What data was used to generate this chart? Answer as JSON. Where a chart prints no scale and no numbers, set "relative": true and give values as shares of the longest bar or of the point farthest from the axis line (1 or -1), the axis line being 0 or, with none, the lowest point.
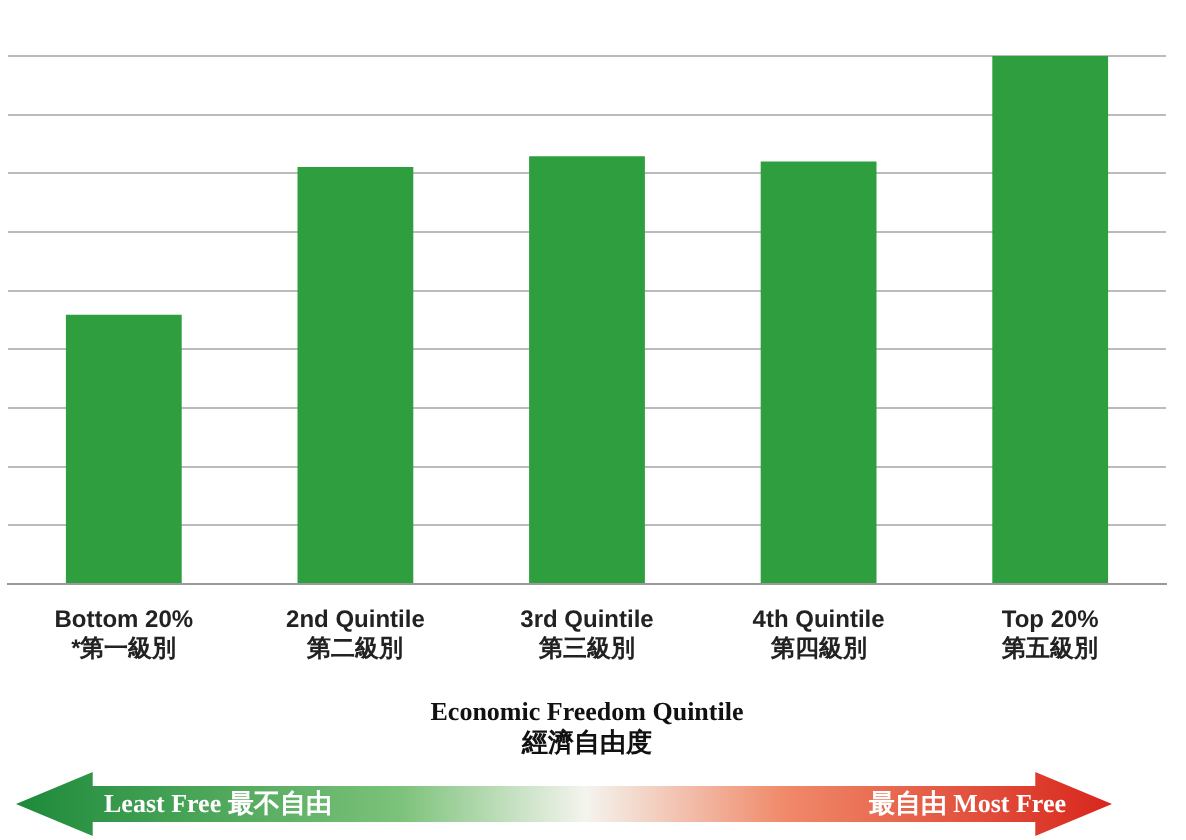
{
  "chart_data": {
    "type": "bar",
    "relative": true,
    "categories": [
      "Bottom 20%\n*第一級別",
      "2nd Quintile\n第二級別",
      "3rd Quintile\n第三級別",
      "4th Quintile\n第四級別",
      "Top 20%\n第五級別"
    ],
    "values": [
      0.51,
      0.79,
      0.81,
      0.8,
      1
    ],
    "color": "#2e9e3e",
    "grid": "y",
    "legend": false,
    "xlabel": "Economic Freedom Quintile\n經濟自由度",
    "annotations": [
      "Least Free 最不自由",
      "最自由 Most Free"
    ]
  }
}
